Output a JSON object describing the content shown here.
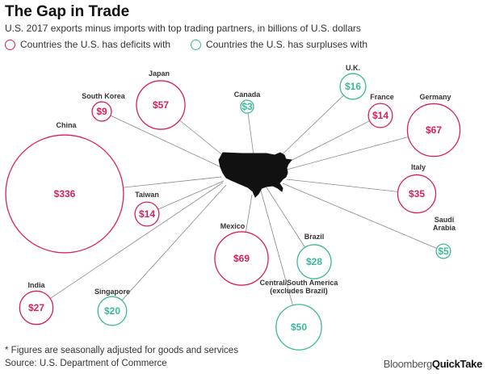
{
  "title": "The Gap in Trade",
  "subtitle": "U.S. 2017 exports minus imports with top trading partners, in billions of U.S. dollars",
  "legend": {
    "deficit": "Countries the U.S. has deficits with",
    "surplus": "Countries the U.S. has surpluses with"
  },
  "colors": {
    "deficit": "#d6215b",
    "surplus": "#3bb89a",
    "lines": "#888888",
    "map": "#111111"
  },
  "footnote": "* Figures are seasonally adjusted for goods and services",
  "source": "Source: U.S. Department of Commerce",
  "brand": {
    "a": "Bloomberg",
    "b": "QuickTake"
  },
  "chart_data": {
    "type": "bubble",
    "title": "The Gap in Trade",
    "series": [
      {
        "name": "Countries the U.S. has deficits with",
        "type": "deficit"
      },
      {
        "name": "Countries the U.S. has surpluses with",
        "type": "surplus"
      }
    ],
    "points": [
      {
        "country": "China",
        "label": "$336",
        "value": 336,
        "type": "deficit"
      },
      {
        "country": "Japan",
        "label": "$57",
        "value": 57,
        "type": "deficit"
      },
      {
        "country": "South Korea",
        "label": "$9",
        "value": 9,
        "type": "deficit"
      },
      {
        "country": "Canada",
        "label": "$3",
        "value": 3,
        "type": "surplus"
      },
      {
        "country": "U.K.",
        "label": "$16",
        "value": 16,
        "type": "surplus"
      },
      {
        "country": "France",
        "label": "$14",
        "value": 14,
        "type": "deficit"
      },
      {
        "country": "Germany",
        "label": "$67",
        "value": 67,
        "type": "deficit"
      },
      {
        "country": "Italy",
        "label": "$35",
        "value": 35,
        "type": "deficit"
      },
      {
        "country": "Saudi Arabia",
        "label": "$5",
        "value": 5,
        "type": "surplus"
      },
      {
        "country": "Taiwan",
        "label": "$14",
        "value": 14,
        "type": "deficit"
      },
      {
        "country": "Mexico",
        "label": "$69",
        "value": 69,
        "type": "deficit"
      },
      {
        "country": "Brazil",
        "label": "$28",
        "value": 28,
        "type": "surplus"
      },
      {
        "country": "India",
        "label": "$27",
        "value": 27,
        "type": "deficit"
      },
      {
        "country": "Singapore",
        "label": "$20",
        "value": 20,
        "type": "surplus"
      },
      {
        "country": "Central/South America (excludes Brazil)",
        "label": "$50",
        "value": 50,
        "type": "surplus"
      }
    ]
  }
}
